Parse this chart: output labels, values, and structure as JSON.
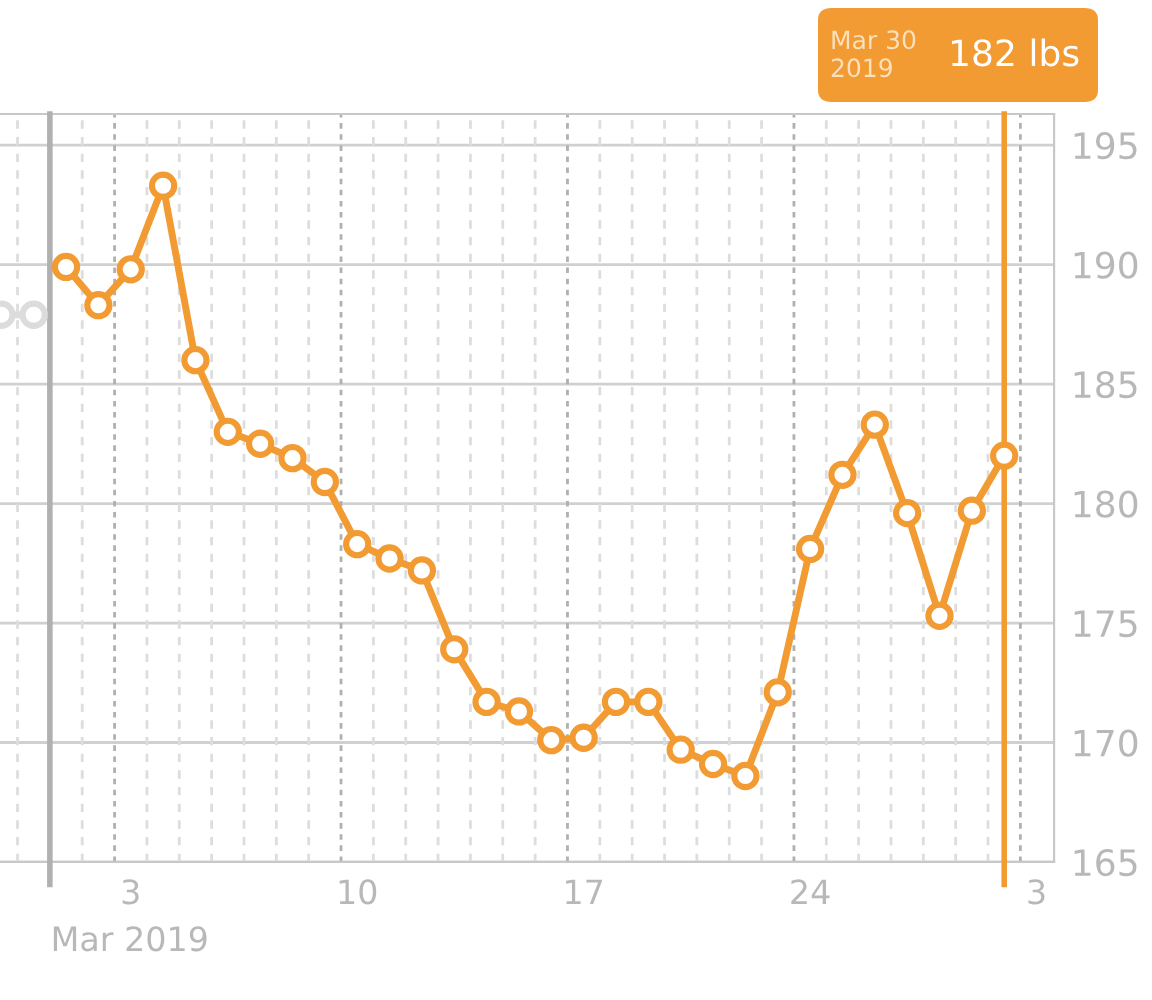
{
  "chart_data": {
    "type": "line",
    "xlabel": "Mar 2019",
    "series": [
      {
        "color": "#dcdcdc",
        "x": [
          "2019-02-27",
          "2019-02-28"
        ],
        "values": [
          187.9,
          187.9
        ]
      },
      {
        "color": "#f29b33",
        "x": [
          "2019-03-01",
          "2019-03-02",
          "2019-03-03",
          "2019-03-04",
          "2019-03-05",
          "2019-03-06",
          "2019-03-07",
          "2019-03-08",
          "2019-03-09",
          "2019-03-10",
          "2019-03-11",
          "2019-03-12",
          "2019-03-13",
          "2019-03-14",
          "2019-03-15",
          "2019-03-16",
          "2019-03-17",
          "2019-03-18",
          "2019-03-19",
          "2019-03-20",
          "2019-03-21",
          "2019-03-22",
          "2019-03-23",
          "2019-03-24",
          "2019-03-25",
          "2019-03-26",
          "2019-03-27",
          "2019-03-28",
          "2019-03-29",
          "2019-03-30"
        ],
        "values": [
          189.9,
          188.3,
          189.8,
          193.3,
          186.0,
          183.0,
          182.5,
          181.9,
          180.9,
          178.3,
          177.7,
          177.2,
          173.9,
          171.7,
          171.3,
          170.1,
          170.2,
          171.7,
          171.7,
          169.7,
          169.1,
          168.6,
          172.1,
          178.1,
          181.2,
          183.3,
          179.6,
          175.3,
          179.7,
          182
        ]
      }
    ],
    "xlim": [
      "2019-02-26T23:00",
      "2019-03-31T13:00"
    ],
    "xticks": [
      {
        "value": "2019-03-03",
        "label": "3"
      },
      {
        "value": "2019-03-10",
        "label": "10"
      },
      {
        "value": "2019-03-17",
        "label": "17"
      },
      {
        "value": "2019-03-24",
        "label": "24"
      },
      {
        "value": "2019-03-31",
        "label": "3"
      }
    ],
    "ylim": [
      165,
      196.3
    ],
    "yticks": [
      165,
      170,
      175,
      180,
      185,
      190,
      195
    ],
    "grid": true,
    "marker": "circle",
    "line_style": "solid",
    "legend": false,
    "ref_lines": [
      {
        "axis": "x",
        "value": "2019-03-30",
        "color": "#f29b33"
      },
      {
        "axis": "x",
        "value": "2019-02-28T12:00",
        "color": "#b0b0b0"
      }
    ],
    "annotations": [
      "Mar 30\n2019",
      "182 lbs"
    ]
  }
}
